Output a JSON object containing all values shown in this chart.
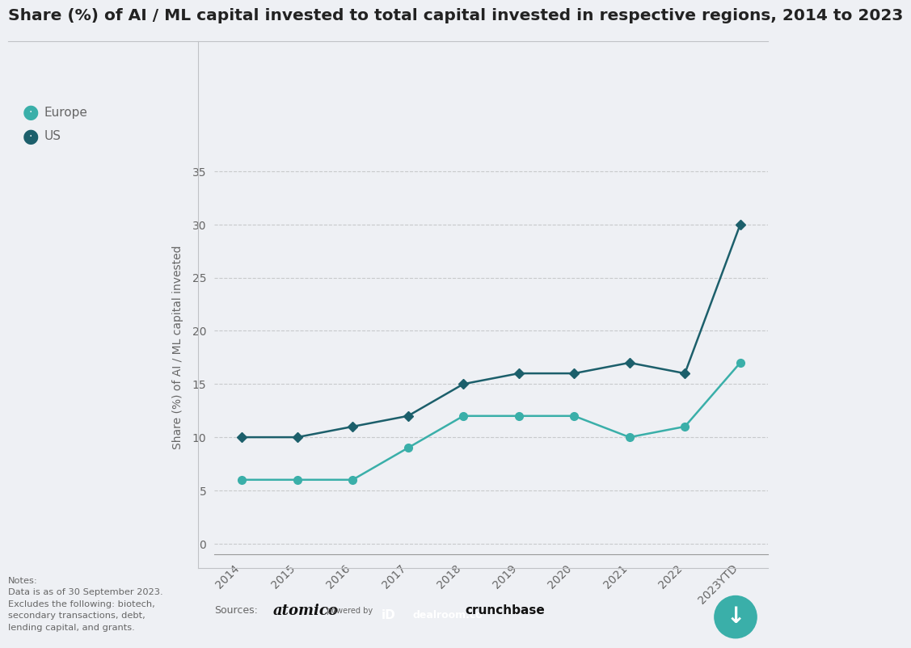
{
  "title": "Share (%) of AI / ML capital invested to total capital invested in respective regions, 2014 to 2023",
  "ylabel": "Share (%) of AI / ML capital invested",
  "years": [
    "2014",
    "2015",
    "2016",
    "2017",
    "2018",
    "2019",
    "2020",
    "2021",
    "2022",
    "2023YTD"
  ],
  "europe_values": [
    6,
    6,
    6,
    9,
    12,
    12,
    12,
    10,
    11,
    17
  ],
  "us_values": [
    10,
    10,
    11,
    12,
    15,
    16,
    16,
    17,
    16,
    30
  ],
  "europe_color": "#3aafa9",
  "us_color": "#1c5f6b",
  "background_color": "#eef0f4",
  "grid_color": "#c8cacc",
  "title_fontsize": 14.5,
  "axis_label_fontsize": 10,
  "tick_fontsize": 10,
  "legend_fontsize": 11,
  "yticks": [
    0,
    5,
    10,
    15,
    20,
    25,
    30,
    35
  ],
  "ylim": [
    -1,
    38
  ],
  "line_width": 1.8,
  "marker_size": 7,
  "text_color": "#666666",
  "title_color": "#222222",
  "notes_text": "Notes:\nData is as of 30 September 2023.\nExcludes the following: biotech,\nsecondary transactions, debt,\nlending capital, and grants.",
  "divider_color": "#c0c2c6"
}
